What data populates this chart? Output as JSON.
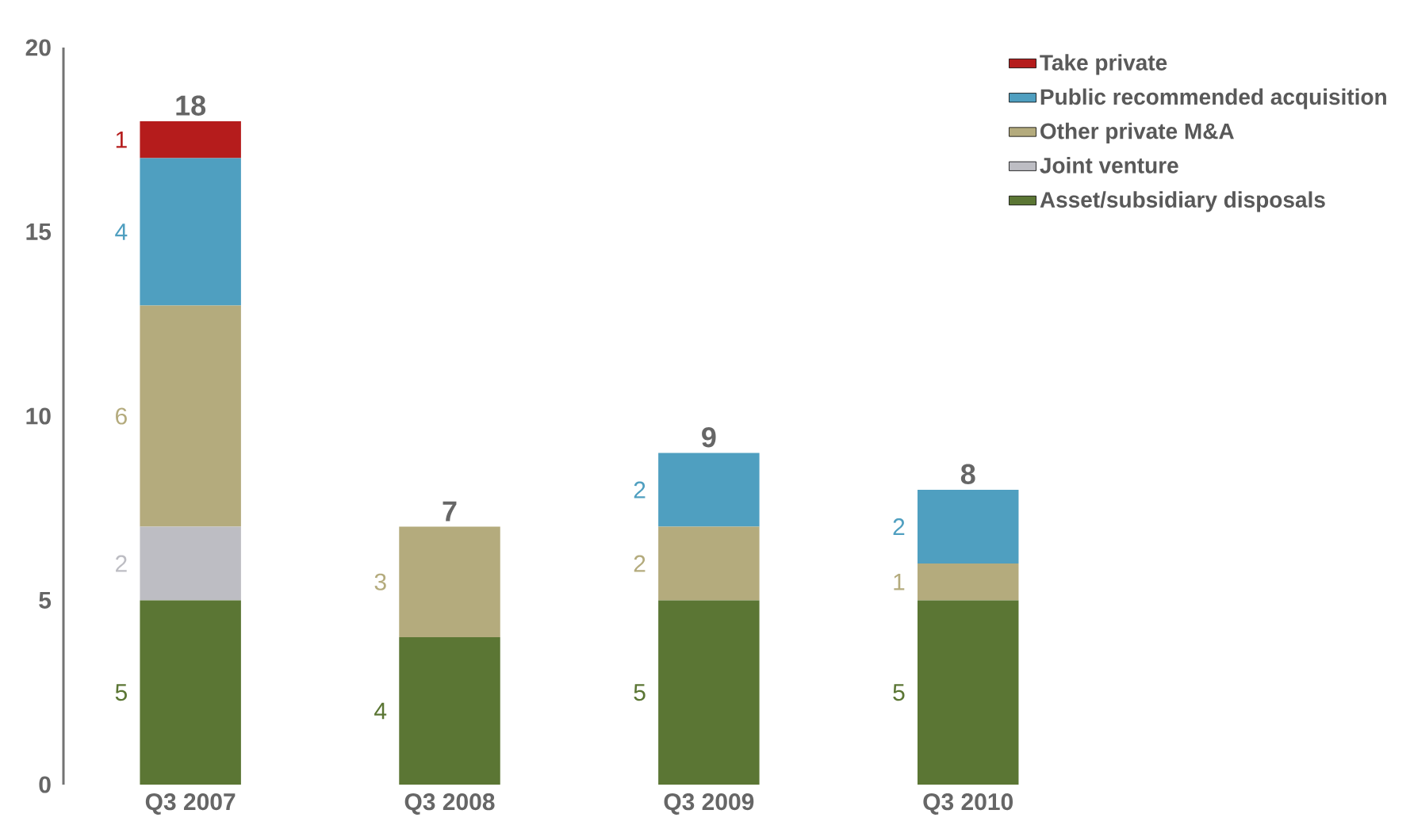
{
  "chart_data": {
    "type": "bar",
    "stacked": true,
    "categories": [
      "Q3 2007",
      "Q3 2008",
      "Q3 2009",
      "Q3 2010"
    ],
    "series": [
      {
        "name": "Asset/subsidiary disposals",
        "color": "#5b7634",
        "values": [
          5,
          4,
          5,
          5
        ]
      },
      {
        "name": "Joint venture",
        "color": "#bdbdc3",
        "values": [
          2,
          null,
          null,
          null
        ]
      },
      {
        "name": "Other private M&A",
        "color": "#b4ab7d",
        "values": [
          6,
          3,
          2,
          1
        ]
      },
      {
        "name": "Public recommended acquisition",
        "color": "#4f9fc0",
        "values": [
          4,
          null,
          2,
          2
        ]
      },
      {
        "name": "Take private",
        "color": "#b51c1c",
        "values": [
          1,
          null,
          null,
          null
        ]
      }
    ],
    "ylim": [
      0,
      20
    ],
    "yticks": [
      0,
      5,
      10,
      15,
      20
    ],
    "data_labels": true,
    "totals": [
      "18",
      "7",
      "9",
      "8"
    ],
    "legend": "top right"
  }
}
